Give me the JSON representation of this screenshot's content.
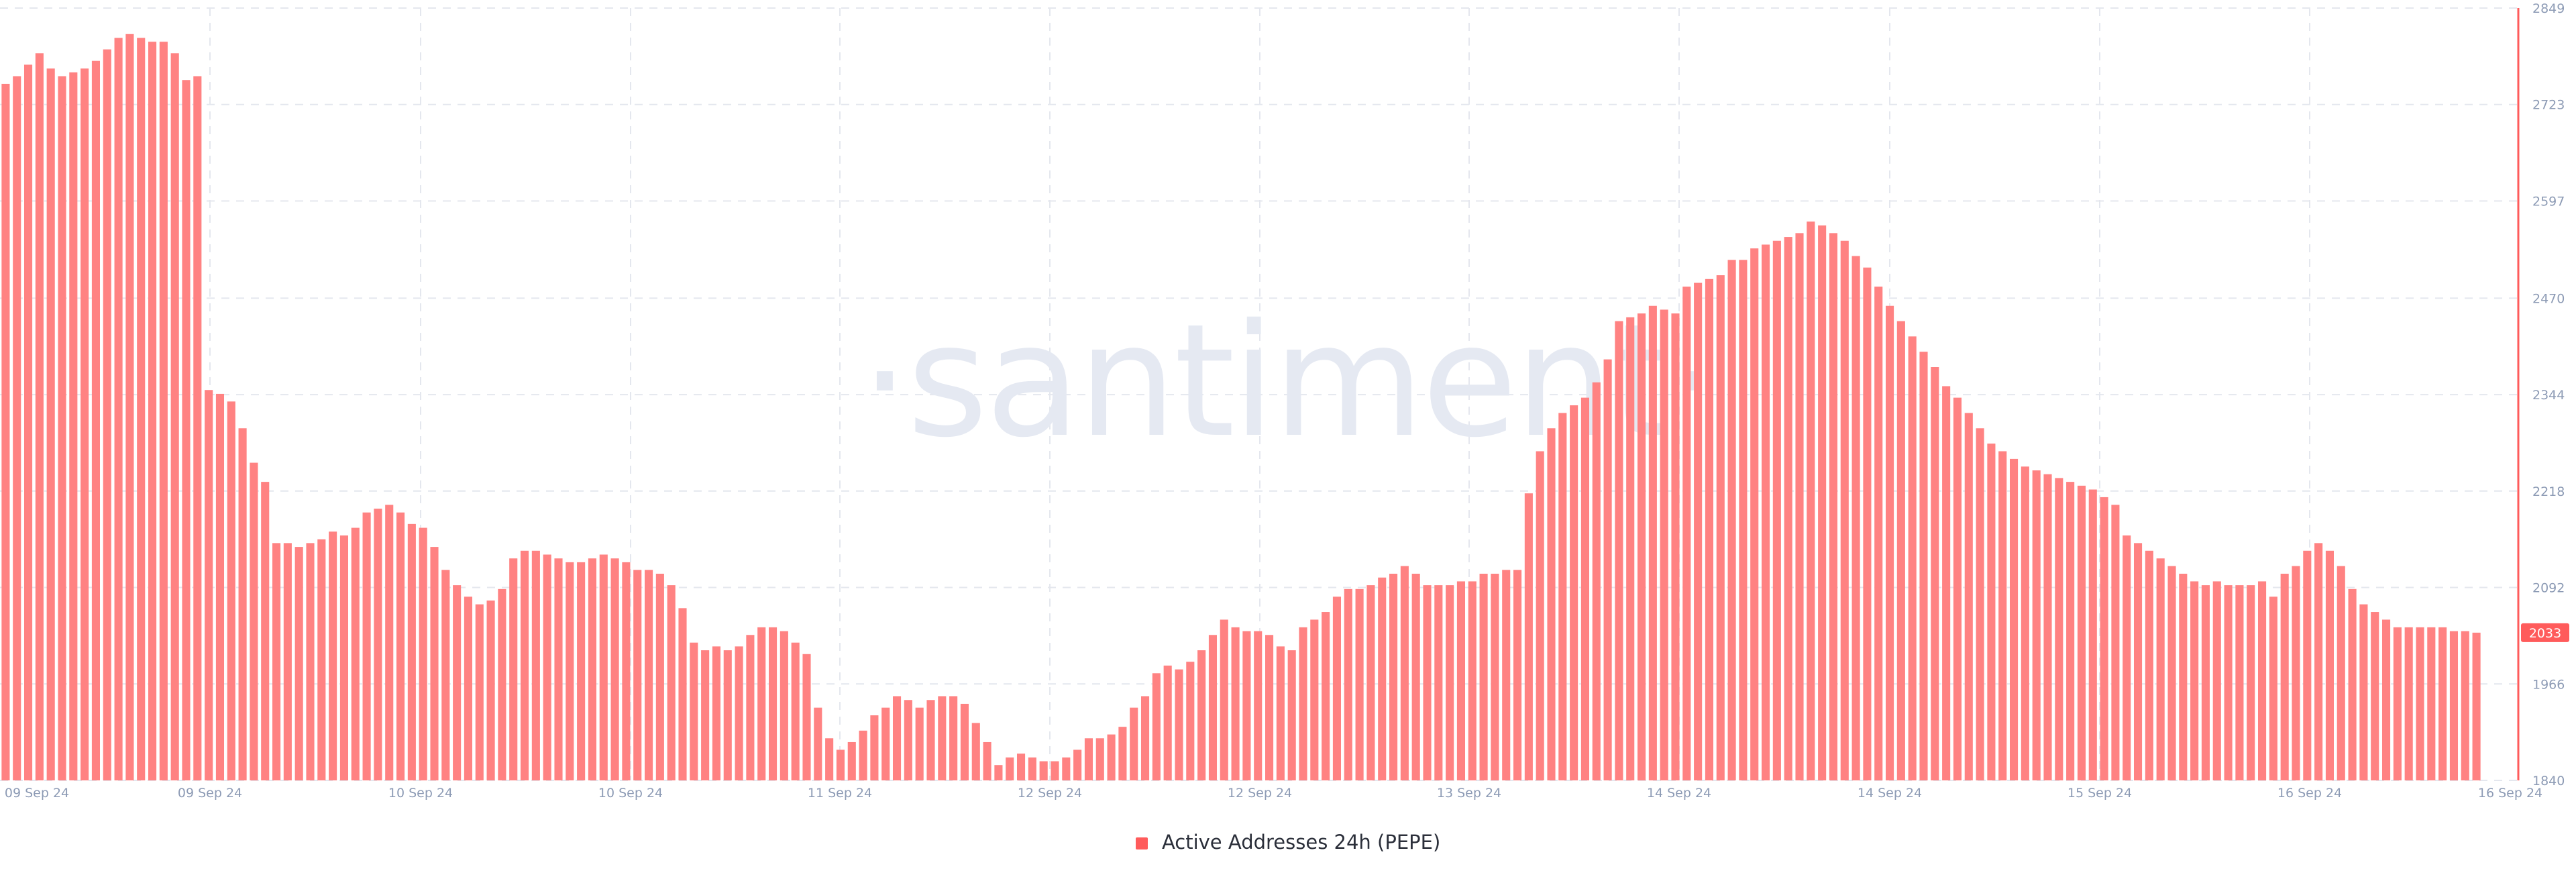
{
  "colors": {
    "bar": "#ff8282",
    "bar_stroke": "#ff6a6a",
    "axis_line": "#ff5b5b",
    "last_value_badge": "#ff5b5b",
    "tick_text": "#8d9bb5",
    "watermark": "#e5e9f2"
  },
  "watermark": {
    "text": "·santiment·"
  },
  "chart_data": {
    "type": "bar",
    "title": "",
    "xlabel": "",
    "ylabel": "",
    "ylim": [
      1840,
      2849
    ],
    "grid": true,
    "legend_position": "bottom-center",
    "y_axis_side": "right",
    "y_ticks": [
      "1840",
      "1966",
      "2092",
      "2218",
      "2344",
      "2470",
      "2597",
      "2723",
      "2849"
    ],
    "x_tick_labels": [
      "09 Sep 24",
      "09 Sep 24",
      "10 Sep 24",
      "10 Sep 24",
      "11 Sep 24",
      "12 Sep 24",
      "12 Sep 24",
      "13 Sep 24",
      "14 Sep 24",
      "14 Sep 24",
      "15 Sep 24",
      "16 Sep 24",
      "16 Sep 24"
    ],
    "last_value": "2033",
    "series": [
      {
        "name": "Active Addresses 24h (PEPE)",
        "values": [
          2750,
          2760,
          2775,
          2790,
          2770,
          2760,
          2765,
          2770,
          2780,
          2795,
          2810,
          2815,
          2810,
          2805,
          2805,
          2790,
          2755,
          2760,
          2350,
          2345,
          2335,
          2300,
          2255,
          2230,
          2150,
          2150,
          2145,
          2150,
          2155,
          2165,
          2160,
          2170,
          2190,
          2195,
          2200,
          2190,
          2175,
          2170,
          2145,
          2115,
          2095,
          2080,
          2070,
          2075,
          2090,
          2130,
          2140,
          2140,
          2135,
          2130,
          2125,
          2125,
          2130,
          2135,
          2130,
          2125,
          2115,
          2115,
          2110,
          2095,
          2065,
          2020,
          2010,
          2015,
          2010,
          2015,
          2030,
          2040,
          2040,
          2035,
          2020,
          2005,
          1935,
          1895,
          1880,
          1890,
          1905,
          1925,
          1935,
          1950,
          1945,
          1935,
          1945,
          1950,
          1950,
          1940,
          1915,
          1890,
          1860,
          1870,
          1875,
          1870,
          1865,
          1865,
          1870,
          1880,
          1895,
          1895,
          1900,
          1910,
          1935,
          1950,
          1980,
          1990,
          1985,
          1995,
          2010,
          2030,
          2050,
          2040,
          2035,
          2035,
          2030,
          2015,
          2010,
          2040,
          2050,
          2060,
          2080,
          2090,
          2090,
          2095,
          2105,
          2110,
          2120,
          2110,
          2095,
          2095,
          2095,
          2100,
          2100,
          2110,
          2110,
          2115,
          2115,
          2215,
          2270,
          2300,
          2320,
          2330,
          2340,
          2360,
          2390,
          2440,
          2445,
          2450,
          2460,
          2455,
          2450,
          2485,
          2490,
          2495,
          2500,
          2520,
          2520,
          2535,
          2540,
          2545,
          2550,
          2555,
          2570,
          2565,
          2555,
          2545,
          2525,
          2510,
          2485,
          2460,
          2440,
          2420,
          2400,
          2380,
          2355,
          2340,
          2320,
          2300,
          2280,
          2270,
          2260,
          2250,
          2245,
          2240,
          2235,
          2230,
          2225,
          2220,
          2210,
          2200,
          2160,
          2150,
          2140,
          2130,
          2120,
          2110,
          2100,
          2095,
          2100,
          2095,
          2095,
          2095,
          2100,
          2080,
          2110,
          2120,
          2140,
          2150,
          2140,
          2120,
          2090,
          2070,
          2060,
          2050,
          2040,
          2040,
          2040,
          2040,
          2040,
          2035,
          2035,
          2033
        ]
      }
    ]
  },
  "legend": {
    "label": "Active Addresses 24h (PEPE)"
  }
}
